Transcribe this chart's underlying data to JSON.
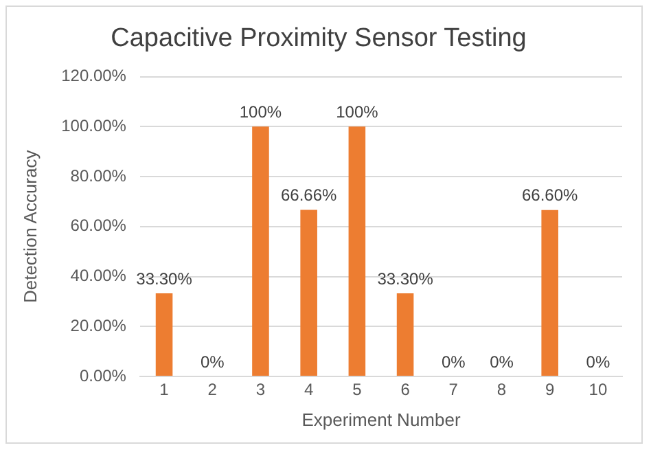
{
  "chart_data": {
    "type": "bar",
    "title": "Capacitive Proximity Sensor Testing",
    "xlabel": "Experiment Number",
    "ylabel": "Detection Accuracy",
    "categories": [
      "1",
      "2",
      "3",
      "4",
      "5",
      "6",
      "7",
      "8",
      "9",
      "10"
    ],
    "values": [
      33.3,
      0,
      100,
      66.66,
      100,
      33.3,
      0,
      0,
      66.6,
      0
    ],
    "value_labels": [
      "33.30%",
      "0%",
      "100%",
      "66.66%",
      "100%",
      "33.30%",
      "0%",
      "0%",
      "66.60%",
      "0%"
    ],
    "color": "#ed7d31",
    "ylim": [
      0,
      120
    ],
    "yticks": [
      {
        "value": 0,
        "label": "0.00%"
      },
      {
        "value": 20,
        "label": "20.00%"
      },
      {
        "value": 40,
        "label": "40.00%"
      },
      {
        "value": 60,
        "label": "60.00%"
      },
      {
        "value": 80,
        "label": "80.00%"
      },
      {
        "value": 100,
        "label": "100.00%"
      },
      {
        "value": 120,
        "label": "120.00%"
      }
    ],
    "grid": "y",
    "legend": false
  }
}
